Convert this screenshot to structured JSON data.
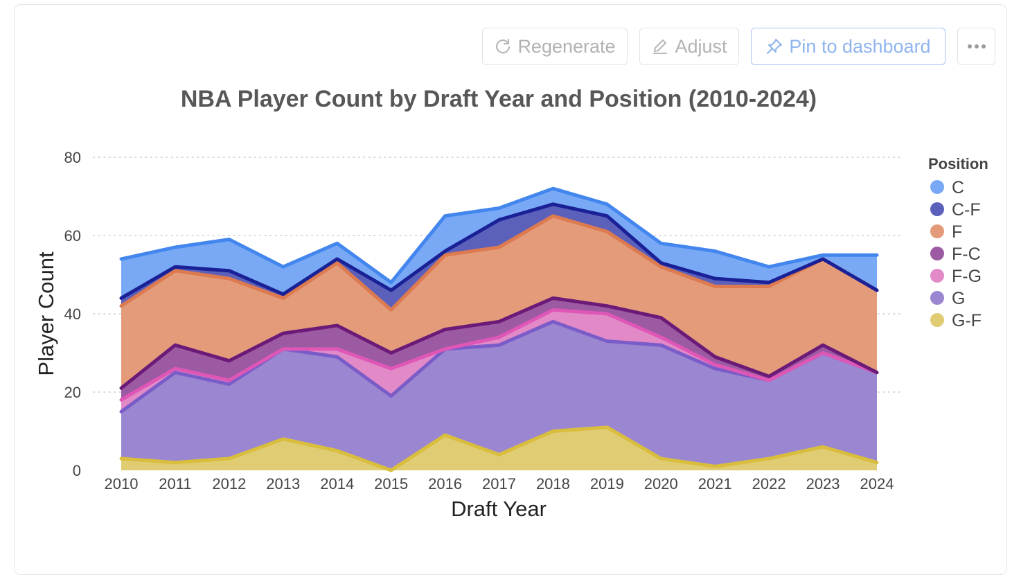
{
  "toolbar": {
    "regenerate_label": "Regenerate",
    "adjust_label": "Adjust",
    "pin_label": "Pin to dashboard",
    "more_icon": "ellipsis-icon"
  },
  "chart_data": {
    "type": "area",
    "stacked": true,
    "title": "NBA Player Count by Draft Year and Position (2010-2024)",
    "xlabel": "Draft Year",
    "ylabel": "Player Count",
    "ylim": [
      0,
      80
    ],
    "yticks": [
      0,
      20,
      40,
      60,
      80
    ],
    "grid": "horizontal dotted",
    "legend_title": "Position",
    "legend_position": "right",
    "x": [
      2010,
      2011,
      2012,
      2013,
      2014,
      2015,
      2016,
      2017,
      2018,
      2019,
      2020,
      2021,
      2022,
      2023,
      2024
    ],
    "series": [
      {
        "name": "G-F",
        "fill": "#e0cc72",
        "line": "#d9be3e",
        "values": [
          3,
          2,
          3,
          8,
          5,
          0,
          9,
          4,
          10,
          11,
          3,
          1,
          3,
          6,
          2
        ]
      },
      {
        "name": "G",
        "fill": "#9a86d1",
        "line": "#7a5cc8",
        "values": [
          12,
          23,
          19,
          23,
          24,
          19,
          22,
          28,
          28,
          22,
          29,
          25,
          20,
          24,
          23
        ]
      },
      {
        "name": "F-G",
        "fill": "#e28ac8",
        "line": "#df57b6",
        "values": [
          3,
          1,
          1,
          0,
          2,
          7,
          0,
          2,
          3,
          7,
          2,
          1,
          0,
          0,
          0
        ]
      },
      {
        "name": "F-C",
        "fill": "#9c5aa2",
        "line": "#6b1a78",
        "values": [
          3,
          6,
          5,
          4,
          6,
          4,
          5,
          4,
          3,
          2,
          5,
          2,
          1,
          2,
          0
        ]
      },
      {
        "name": "F",
        "fill": "#e39b7a",
        "line": "#dd7a4f",
        "values": [
          21,
          19,
          21,
          9,
          16,
          11,
          19,
          19,
          21,
          19,
          13,
          18,
          23,
          22,
          21
        ]
      },
      {
        "name": "C-F",
        "fill": "#5b60bb",
        "line": "#1a2196",
        "values": [
          2,
          1,
          2,
          1,
          1,
          5,
          1,
          7,
          3,
          4,
          1,
          2,
          1,
          0,
          0
        ]
      },
      {
        "name": "C",
        "fill": "#79a9f5",
        "line": "#4286ee",
        "values": [
          10,
          5,
          8,
          7,
          4,
          2,
          9,
          3,
          4,
          3,
          5,
          7,
          4,
          1,
          9
        ]
      }
    ]
  }
}
